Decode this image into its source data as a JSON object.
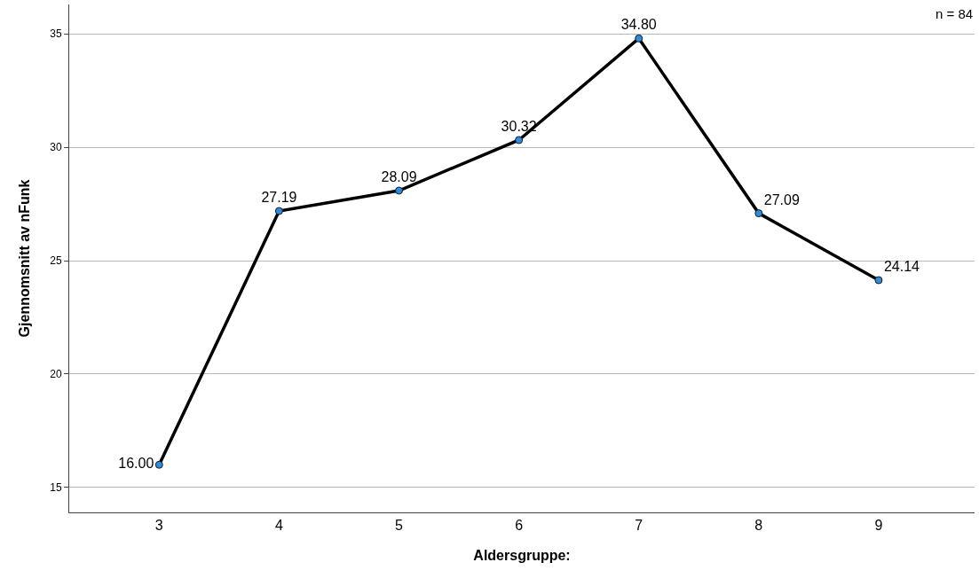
{
  "chart_data": {
    "type": "line",
    "xlabel": "Aldersgruppe:",
    "ylabel": "Gjennomsnitt av nFunk",
    "categories": [
      "3",
      "4",
      "5",
      "6",
      "7",
      "8",
      "9"
    ],
    "series": [
      {
        "color": "#000000",
        "values": [
          16.0,
          27.19,
          28.09,
          30.32,
          34.8,
          27.09,
          24.14
        ],
        "value_labels": [
          "16.00",
          "27.19",
          "28.09",
          "30.32",
          "34.80",
          "27.09",
          "24.14"
        ]
      }
    ],
    "marker": "circle",
    "line_style": "solid",
    "ylim": [
      13.9,
      36.3
    ],
    "yticks": [
      15,
      20,
      25,
      30,
      35
    ],
    "grid": "y",
    "annotations": [
      "n = 84"
    ]
  }
}
